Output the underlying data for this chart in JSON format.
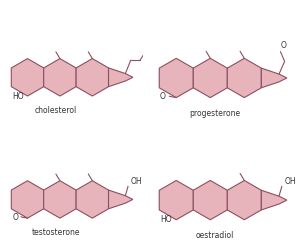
{
  "bg_color": "#ffffff",
  "fill_color": "#e8b4bc",
  "edge_color": "#8b5060",
  "label_color": "#333333",
  "molecules": [
    "cholesterol",
    "progesterone",
    "testosterone",
    "oestradiol"
  ]
}
